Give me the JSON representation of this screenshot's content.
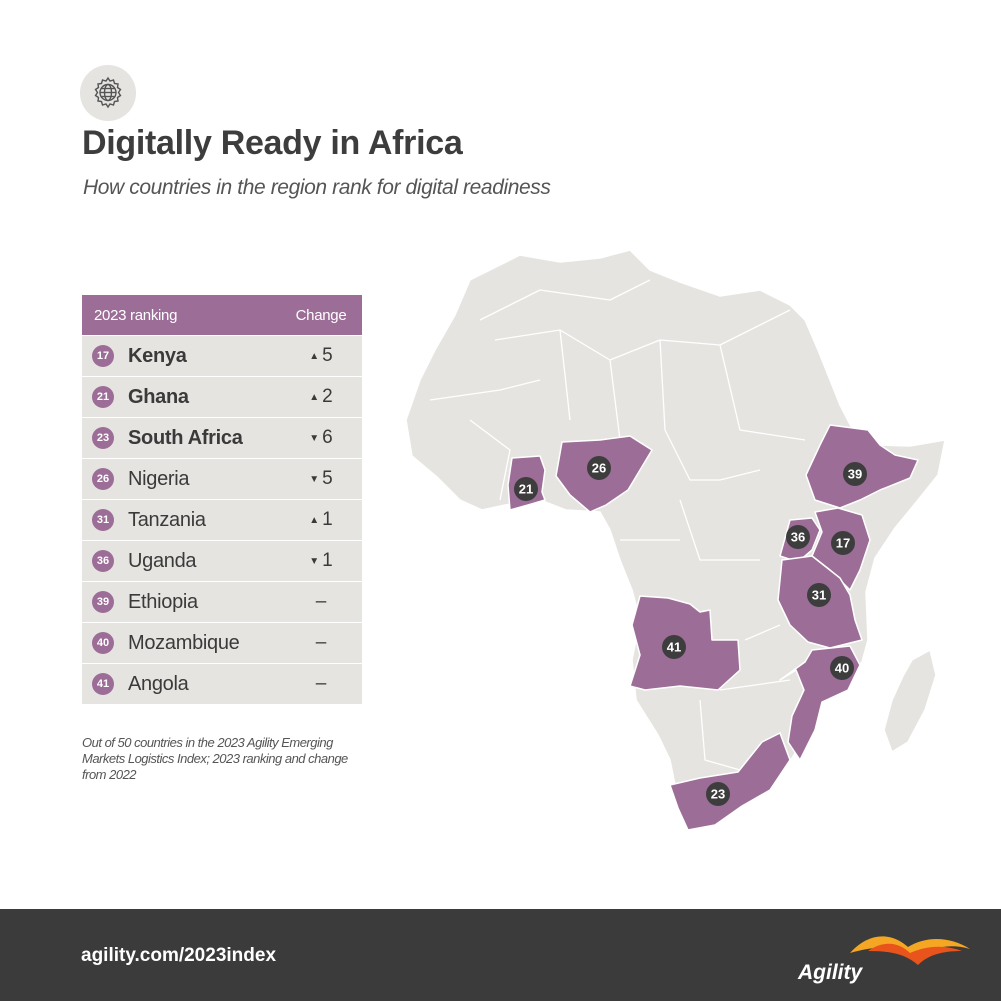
{
  "header": {
    "icon": "globe-gear-icon",
    "title": "Digitally Ready in Africa",
    "subtitle": "How countries in the region rank for digital readiness"
  },
  "table": {
    "col_rank": "2023 ranking",
    "col_change": "Change",
    "rows": [
      {
        "rank": "17",
        "country": "Kenya",
        "bold": true,
        "direction": "up",
        "change": "5"
      },
      {
        "rank": "21",
        "country": "Ghana",
        "bold": true,
        "direction": "up",
        "change": "2"
      },
      {
        "rank": "23",
        "country": "South Africa",
        "bold": true,
        "direction": "down",
        "change": "6"
      },
      {
        "rank": "26",
        "country": "Nigeria",
        "bold": false,
        "direction": "down",
        "change": "5"
      },
      {
        "rank": "31",
        "country": "Tanzania",
        "bold": false,
        "direction": "up",
        "change": "1"
      },
      {
        "rank": "36",
        "country": "Uganda",
        "bold": false,
        "direction": "down",
        "change": "1"
      },
      {
        "rank": "39",
        "country": "Ethiopia",
        "bold": false,
        "direction": "none",
        "change": "–"
      },
      {
        "rank": "40",
        "country": "Mozambique",
        "bold": false,
        "direction": "none",
        "change": "–"
      },
      {
        "rank": "41",
        "country": "Angola",
        "bold": false,
        "direction": "none",
        "change": "–"
      }
    ]
  },
  "footnote": "Out of 50 countries in the 2023 Agility Emerging Markets Logistics Index; 2023 ranking and change from 2022",
  "map": {
    "highlight_color": "#9c6d97",
    "land_color": "#e6e4e0",
    "label_color": "#3d3d3d",
    "markers": [
      {
        "country": "Ghana",
        "rank": "21"
      },
      {
        "country": "Nigeria",
        "rank": "26"
      },
      {
        "country": "Ethiopia",
        "rank": "39"
      },
      {
        "country": "Uganda",
        "rank": "36"
      },
      {
        "country": "Kenya",
        "rank": "17"
      },
      {
        "country": "Tanzania",
        "rank": "31"
      },
      {
        "country": "Angola",
        "rank": "41"
      },
      {
        "country": "Mozambique",
        "rank": "40"
      },
      {
        "country": "South Africa",
        "rank": "23"
      }
    ]
  },
  "footer": {
    "url": "agility.com/2023index",
    "brand": "Agility"
  }
}
